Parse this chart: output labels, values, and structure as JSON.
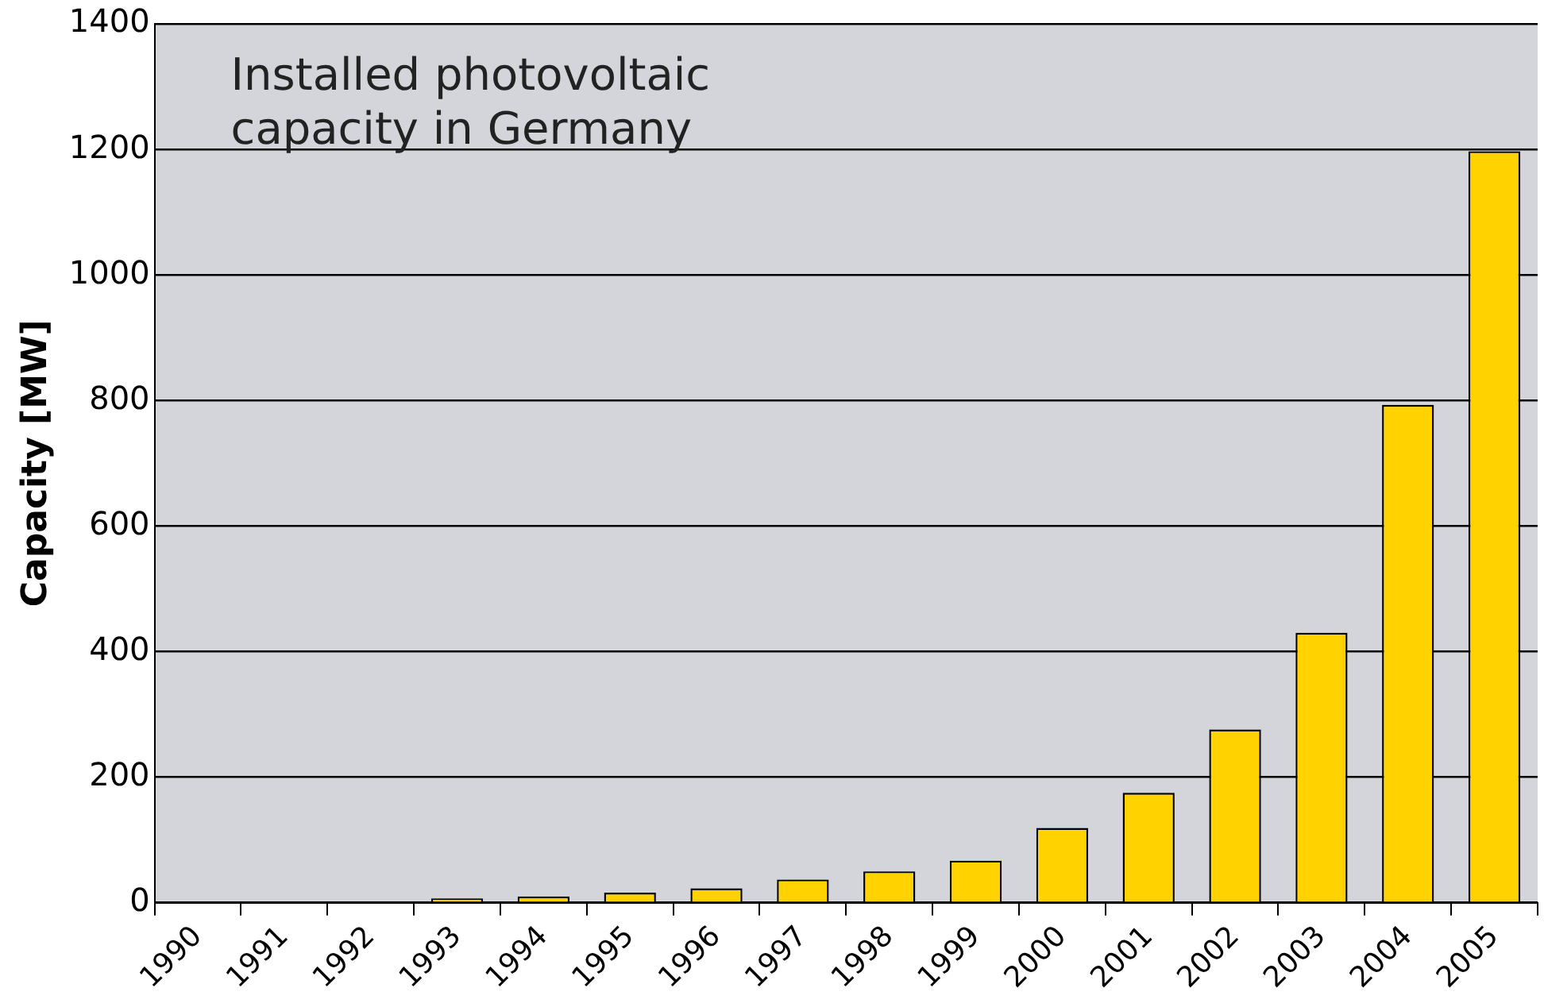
{
  "chart_data": {
    "type": "bar",
    "title": "Installed photovoltaic capacity in Germany",
    "ylabel": "Capacity [MW]",
    "categories": [
      "1990",
      "1991",
      "1992",
      "1993",
      "1994",
      "1995",
      "1996",
      "1997",
      "1998",
      "1999",
      "2000",
      "2001",
      "2002",
      "2003",
      "2004",
      "2005"
    ],
    "values": [
      null,
      null,
      null,
      7,
      10,
      16,
      23,
      37,
      50,
      67,
      119,
      175,
      276,
      430,
      793,
      1197
    ],
    "color": "#ffd200",
    "ylim": [
      0,
      1400
    ],
    "yticks": [
      0,
      200,
      400,
      600,
      800,
      1000,
      1200,
      1400
    ],
    "grid": "y",
    "legend": false
  }
}
